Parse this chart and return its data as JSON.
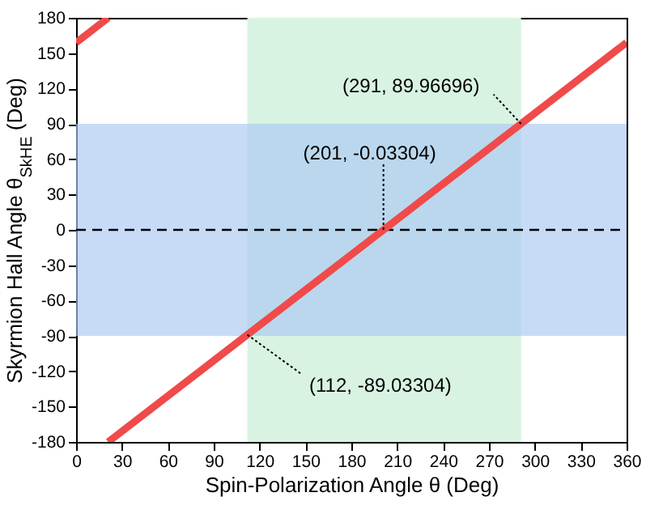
{
  "chart_data": {
    "type": "line",
    "xlabel": "Spin-Polarization Angle θ (Deg)",
    "ylabel": "Skyrmion Hall Angle θ$_{SkHE}$ (Deg)",
    "series": [
      {
        "color": "#f04a4a",
        "x": [
          0,
          21
        ],
        "values": [
          159,
          180
        ]
      },
      {
        "color": "#f04a4a",
        "x": [
          21,
          360
        ],
        "values": [
          -180,
          159
        ]
      }
    ],
    "xlim": [
      0,
      360
    ],
    "xticks": [
      0,
      30,
      60,
      90,
      120,
      150,
      180,
      210,
      240,
      270,
      300,
      330,
      360
    ],
    "ylim": [
      -180,
      180
    ],
    "yticks": [
      -180,
      -150,
      -120,
      -90,
      -60,
      -30,
      0,
      30,
      60,
      90,
      120,
      150,
      180
    ],
    "bands": [
      {
        "axis": "x",
        "from": 112,
        "to": 291,
        "color": "#d9f3e3"
      },
      {
        "axis": "y",
        "from": -90,
        "to": 90,
        "color": "#a9c8f2"
      }
    ],
    "ref_lines": [
      {
        "axis": "y",
        "value": 0,
        "color": "#000000",
        "line_style": "dashed"
      }
    ],
    "annotations": [
      {
        "text": "(291, 89.96696)",
        "x": 291,
        "y": 89.96696
      },
      {
        "text": "(201, -0.03304)",
        "x": 201,
        "y": -0.03304
      },
      {
        "text": "(112, -89.03304)",
        "x": 112,
        "y": -89.03304
      }
    ],
    "grid": false,
    "marker": "none",
    "line_style": "solid"
  }
}
